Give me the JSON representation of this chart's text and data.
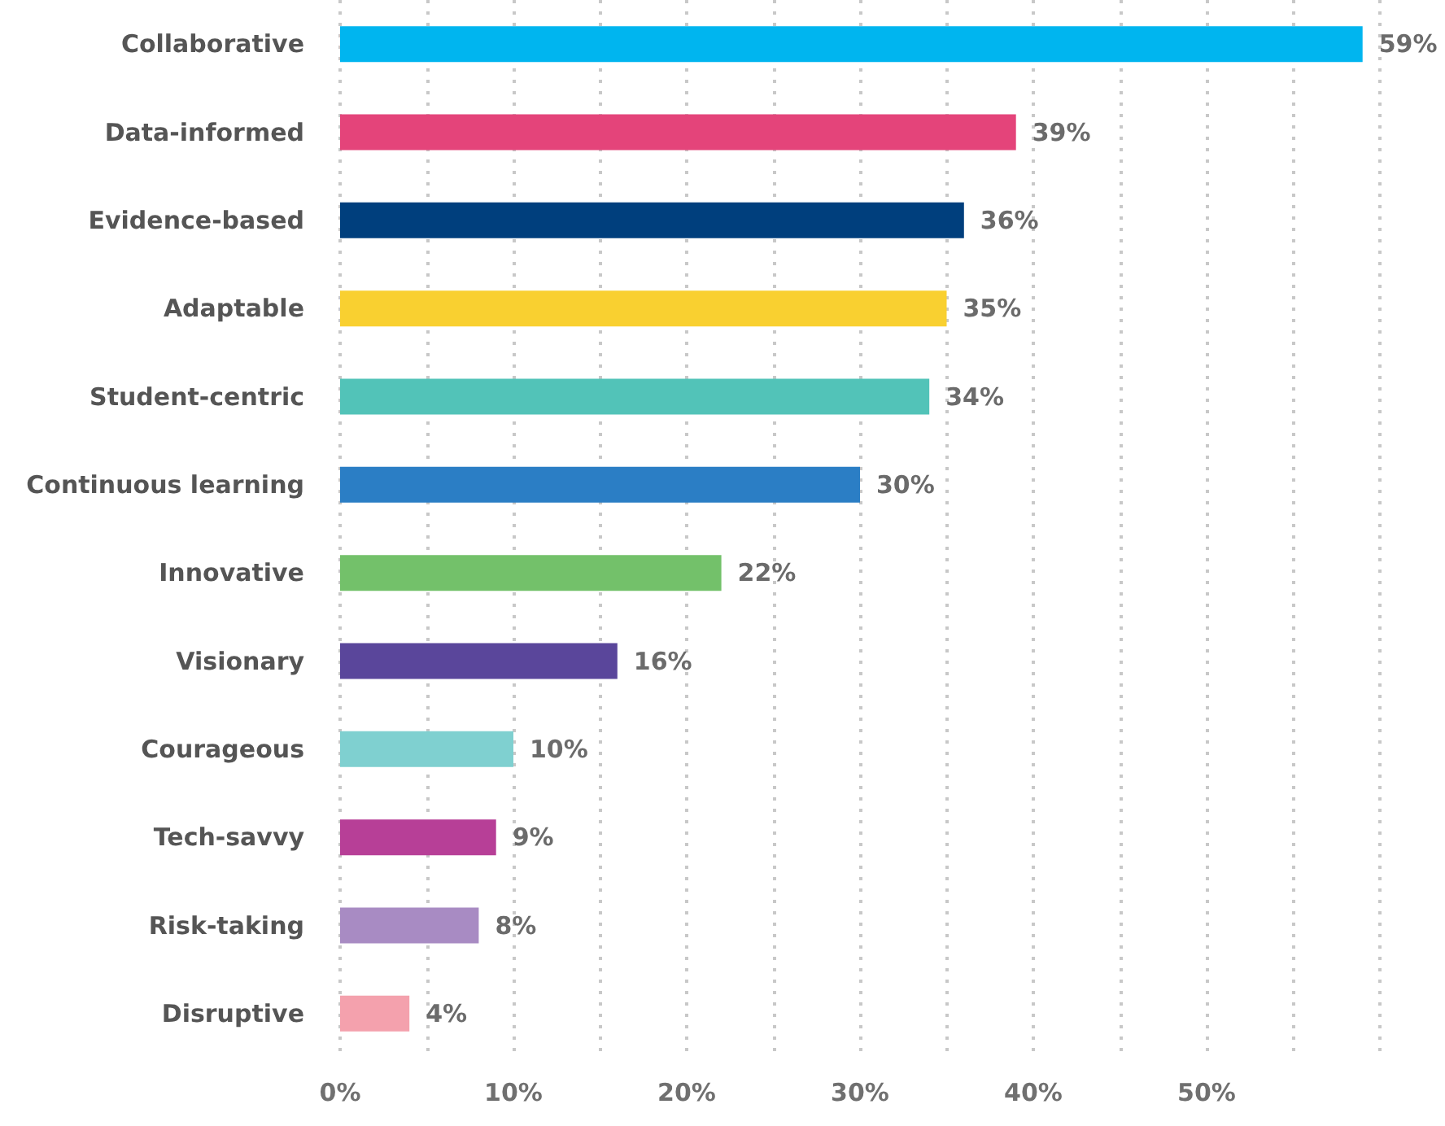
{
  "chart_data": {
    "type": "bar",
    "orientation": "horizontal",
    "categories": [
      "Collaborative",
      "Data-informed",
      "Evidence-based",
      "Adaptable",
      "Student-centric",
      "Continuous learning",
      "Innovative",
      "Visionary",
      "Courageous",
      "Tech-savvy",
      "Risk-taking",
      "Disruptive"
    ],
    "values": [
      59,
      39,
      36,
      35,
      34,
      30,
      22,
      16,
      10,
      9,
      8,
      4
    ],
    "value_labels": [
      "59%",
      "39%",
      "36%",
      "35%",
      "34%",
      "30%",
      "22%",
      "16%",
      "10%",
      "9%",
      "8%",
      "4%"
    ],
    "colors": [
      "#00b5ef",
      "#e4447a",
      "#003f7d",
      "#f9d030",
      "#52c3b8",
      "#2b7ec5",
      "#73c16a",
      "#5a469b",
      "#7fd0d0",
      "#b73f97",
      "#a88bc3",
      "#f4a1ad"
    ],
    "xlim": [
      0,
      60
    ],
    "xticks": [
      {
        "value": 0,
        "label": "0%"
      },
      {
        "value": 5,
        "label": null
      },
      {
        "value": 10,
        "label": "10%"
      },
      {
        "value": 15,
        "label": null
      },
      {
        "value": 20,
        "label": "20%"
      },
      {
        "value": 25,
        "label": null
      },
      {
        "value": 30,
        "label": "30%"
      },
      {
        "value": 35,
        "label": null
      },
      {
        "value": 40,
        "label": "40%"
      },
      {
        "value": 45,
        "label": null
      },
      {
        "value": 50,
        "label": "50%"
      },
      {
        "value": 55,
        "label": null
      },
      {
        "value": 60,
        "label": null
      }
    ],
    "grid": "x"
  }
}
